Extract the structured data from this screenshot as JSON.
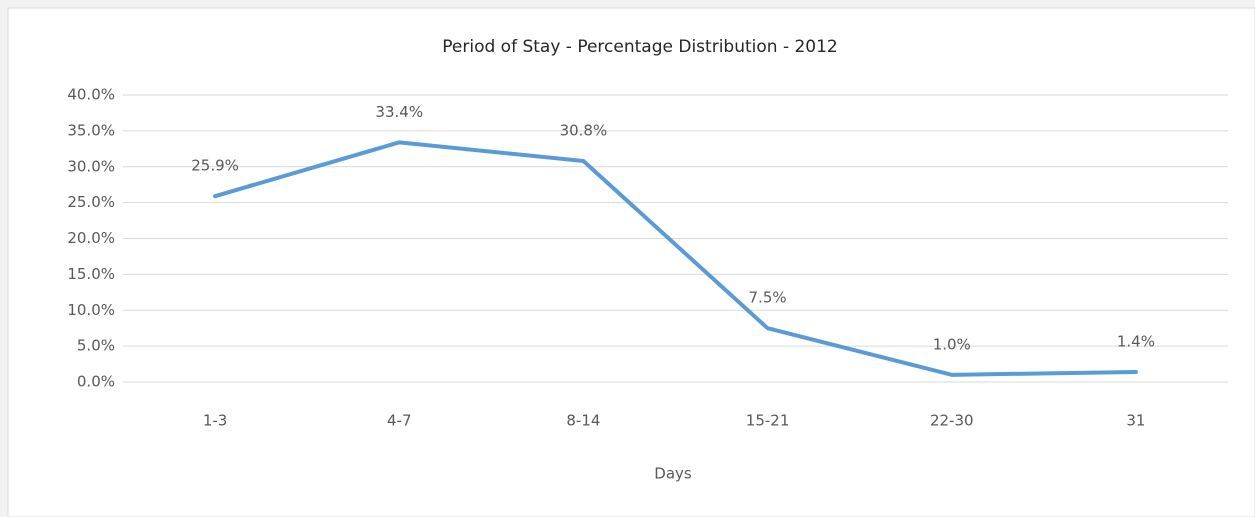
{
  "chart_data": {
    "type": "line",
    "title": "Period of Stay - Percentage Distribution - 2012",
    "x_label": "Days",
    "categories": [
      "1-3",
      "4-7",
      "8-14",
      "15-21",
      "22-30",
      "31"
    ],
    "values": [
      25.9,
      33.4,
      30.8,
      7.5,
      1.0,
      1.4
    ],
    "value_labels": [
      "25.9%",
      "33.4%",
      "30.8%",
      "7.5%",
      "1.0%",
      "1.4%"
    ],
    "color": "#5b9bd5",
    "ylim": [
      0,
      40
    ],
    "yticks": [
      {
        "value": 0,
        "label": "0.0%"
      },
      {
        "value": 5,
        "label": "5.0%"
      },
      {
        "value": 10,
        "label": "10.0%"
      },
      {
        "value": 15,
        "label": "15.0%"
      },
      {
        "value": 20,
        "label": "20.0%"
      },
      {
        "value": 25,
        "label": "25.0%"
      },
      {
        "value": 30,
        "label": "30.0%"
      },
      {
        "value": 35,
        "label": "35.0%"
      },
      {
        "value": 40,
        "label": "40.0%"
      }
    ],
    "grid": true
  }
}
